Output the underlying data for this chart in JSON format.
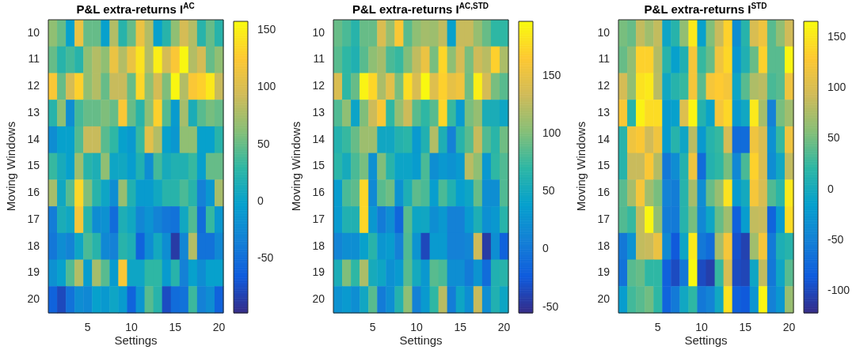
{
  "chart_data": [
    {
      "type": "heatmap",
      "title": "P&L extra-returns I$^{AC}$",
      "xlabel": "Settings",
      "ylabel": "Moving Windows",
      "categories": [
        null,
        null,
        null,
        null,
        "5",
        null,
        null,
        null,
        null,
        "10",
        null,
        null,
        null,
        null,
        "15",
        null,
        null,
        null,
        null,
        "20"
      ],
      "y_categories": [
        "10",
        "11",
        "12",
        "13",
        "14",
        "15",
        "16",
        "17",
        "18",
        "19",
        "20"
      ],
      "cells": [
        [
          66,
          50,
          -1,
          112,
          50,
          50,
          -1,
          81,
          25,
          50,
          112,
          81,
          -1,
          25,
          66,
          97,
          81,
          25,
          50,
          25
        ],
        [
          50,
          25,
          38,
          25,
          66,
          81,
          66,
          112,
          81,
          112,
          142,
          81,
          150,
          97,
          123,
          155,
          81,
          97,
          50,
          66
        ],
        [
          123,
          50,
          97,
          131,
          66,
          81,
          50,
          90,
          90,
          50,
          135,
          66,
          97,
          59,
          155,
          81,
          123,
          131,
          146,
          90
        ],
        [
          25,
          66,
          -21,
          38,
          50,
          50,
          59,
          50,
          123,
          50,
          25,
          66,
          131,
          43,
          -7,
          75,
          15,
          45,
          56,
          50
        ],
        [
          -21,
          -1,
          -1,
          43,
          90,
          90,
          45,
          30,
          -1,
          -9,
          33,
          106,
          81,
          -1,
          -11,
          66,
          66,
          -1,
          -1,
          25
        ],
        [
          33,
          12,
          -1,
          72,
          25,
          17,
          66,
          4,
          7,
          -5,
          20,
          -21,
          38,
          12,
          20,
          20,
          33,
          -3,
          50,
          50
        ],
        [
          75,
          7,
          45,
          135,
          59,
          25,
          4,
          -21,
          69,
          20,
          -7,
          -7,
          7,
          25,
          25,
          40,
          25,
          -34,
          -11,
          75
        ],
        [
          -37,
          15,
          7,
          120,
          25,
          -21,
          -17,
          -52,
          17,
          7,
          -29,
          -15,
          -32,
          -42,
          -47,
          7,
          43,
          -52,
          33,
          -11
        ],
        [
          -42,
          -21,
          -32,
          4,
          40,
          25,
          -26,
          -34,
          25,
          17,
          -60,
          -21,
          9,
          -21,
          -87,
          -29,
          81,
          -47,
          -47,
          -26
        ],
        [
          -17,
          -1,
          43,
          81,
          -5,
          75,
          45,
          -7,
          123,
          4,
          4,
          30,
          30,
          -7,
          25,
          -34,
          -1,
          -21,
          -1,
          -1
        ],
        [
          -60,
          -78,
          -47,
          -21,
          -26,
          -1,
          -9,
          4,
          -7,
          -60,
          -13,
          45,
          25,
          -76,
          -52,
          -47,
          35,
          -34,
          -21,
          -60
        ]
      ],
      "clim": [
        -98,
        158
      ],
      "cticks": [
        -50,
        0,
        50,
        100,
        150
      ]
    },
    {
      "type": "heatmap",
      "title": "P&L extra-returns I$^{AC,STD}$",
      "xlabel": "Settings",
      "ylabel": "Moving Windows",
      "categories": [
        null,
        null,
        null,
        null,
        "5",
        null,
        null,
        null,
        null,
        "10",
        null,
        null,
        null,
        null,
        "15",
        null,
        null,
        null,
        null,
        "20"
      ],
      "y_categories": [
        "10",
        "11",
        "12",
        "13",
        "14",
        "15",
        "16",
        "17",
        "18",
        "19",
        "20"
      ],
      "cells": [
        [
          91,
          81,
          66,
          91,
          91,
          140,
          109,
          163,
          86,
          106,
          115,
          112,
          127,
          41,
          130,
          130,
          109,
          91,
          71,
          71
        ],
        [
          86,
          71,
          61,
          86,
          106,
          115,
          81,
          74,
          100,
          127,
          152,
          97,
          174,
          106,
          137,
          97,
          133,
          124,
          170,
          118
        ],
        [
          140,
          71,
          91,
          192,
          174,
          118,
          146,
          97,
          178,
          140,
          195,
          143,
          170,
          149,
          156,
          94,
          189,
          137,
          97,
          86
        ],
        [
          83,
          106,
          44,
          100,
          133,
          163,
          71,
          109,
          133,
          86,
          71,
          86,
          174,
          74,
          33,
          97,
          109,
          56,
          56,
          46
        ],
        [
          63,
          74,
          91,
          112,
          112,
          48,
          48,
          63,
          68,
          33,
          61,
          121,
          58,
          8,
          66,
          86,
          130,
          83,
          68,
          94
        ],
        [
          68,
          53,
          81,
          97,
          23,
          100,
          66,
          44,
          44,
          35,
          81,
          21,
          31,
          25,
          33,
          124,
          106,
          31,
          71,
          83
        ],
        [
          35,
          81,
          88,
          174,
          16,
          86,
          94,
          25,
          58,
          88,
          81,
          37,
          81,
          61,
          37,
          46,
          91,
          21,
          21,
          83
        ],
        [
          33,
          61,
          61,
          174,
          31,
          3,
          21,
          -15,
          86,
          46,
          48,
          21,
          31,
          8,
          8,
          33,
          58,
          23,
          31,
          66
        ],
        [
          11,
          21,
          21,
          41,
          66,
          29,
          35,
          8,
          83,
          27,
          -36,
          33,
          33,
          8,
          8,
          13,
          133,
          -44,
          21,
          -18
        ],
        [
          56,
          100,
          71,
          118,
          53,
          46,
          23,
          33,
          86,
          51,
          31,
          86,
          81,
          21,
          21,
          3,
          27,
          -10,
          61,
          66
        ],
        [
          25,
          33,
          21,
          48,
          86,
          3,
          21,
          63,
          106,
          8,
          33,
          71,
          124,
          5,
          46,
          21,
          130,
          21,
          61,
          46
        ]
      ],
      "clim": [
        -55,
        197
      ],
      "cticks": [
        -50,
        0,
        50,
        100,
        150
      ]
    },
    {
      "type": "heatmap",
      "title": "P&L extra-returns I$^{STD}$",
      "xlabel": "Settings",
      "ylabel": "Moving Windows",
      "categories": [
        null,
        null,
        null,
        null,
        "5",
        null,
        null,
        null,
        null,
        "10",
        null,
        null,
        null,
        null,
        "15",
        null,
        null,
        null,
        null,
        "20"
      ],
      "y_categories": [
        "10",
        "11",
        "12",
        "13",
        "14",
        "15",
        "16",
        "17",
        "18",
        "19",
        "20"
      ],
      "cells": [
        [
          52,
          45,
          87,
          70,
          87,
          -7,
          16,
          63,
          153,
          -13,
          56,
          90,
          136,
          -36,
          16,
          100,
          118,
          39,
          63,
          94
        ],
        [
          45,
          63,
          136,
          136,
          80,
          16,
          -13,
          10,
          123,
          25,
          45,
          118,
          140,
          -25,
          10,
          45,
          136,
          39,
          39,
          162
        ],
        [
          97,
          63,
          148,
          153,
          83,
          -4,
          16,
          25,
          123,
          39,
          123,
          131,
          123,
          -7,
          39,
          77,
          83,
          33,
          39,
          118
        ],
        [
          127,
          16,
          160,
          144,
          144,
          -20,
          -13,
          104,
          162,
          13,
          -10,
          123,
          140,
          -22,
          -4,
          153,
          73,
          -50,
          52,
          70
        ],
        [
          16,
          118,
          127,
          94,
          118,
          -20,
          16,
          -7,
          83,
          -22,
          16,
          25,
          97,
          -70,
          -70,
          118,
          100,
          -31,
          25,
          118
        ],
        [
          16,
          90,
          90,
          127,
          80,
          -58,
          -36,
          13,
          118,
          -70,
          13,
          22,
          52,
          -42,
          33,
          136,
          100,
          -36,
          -4,
          87
        ],
        [
          39,
          73,
          123,
          70,
          52,
          -47,
          -53,
          16,
          73,
          -36,
          45,
          66,
          148,
          -20,
          -1,
          123,
          100,
          36,
          19,
          153
        ],
        [
          36,
          25,
          87,
          162,
          63,
          -53,
          -56,
          16,
          52,
          -42,
          -7,
          45,
          70,
          -81,
          -18,
          87,
          90,
          -78,
          -20,
          144
        ],
        [
          -58,
          -29,
          87,
          90,
          114,
          -39,
          -87,
          -7,
          153,
          -58,
          -70,
          73,
          123,
          -93,
          -105,
          70,
          123,
          -56,
          7,
          16
        ],
        [
          -64,
          39,
          45,
          22,
          22,
          -81,
          -98,
          -58,
          164,
          -98,
          -107,
          25,
          100,
          -98,
          -102,
          -7,
          87,
          -58,
          -7,
          39
        ],
        [
          -18,
          30,
          39,
          49,
          22,
          -78,
          -56,
          -4,
          22,
          -58,
          -47,
          -4,
          148,
          -81,
          -87,
          -27,
          162,
          -50,
          -25,
          66
        ]
      ],
      "clim": [
        -122,
        166
      ],
      "cticks": [
        -100,
        -50,
        0,
        50,
        100,
        150
      ]
    }
  ]
}
